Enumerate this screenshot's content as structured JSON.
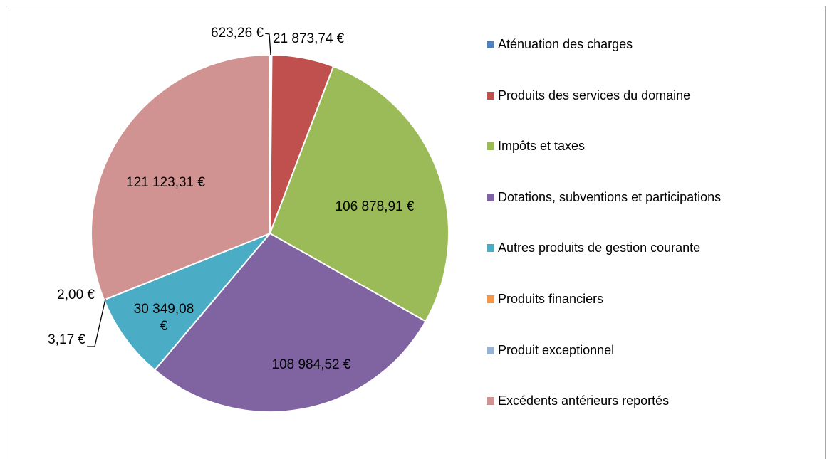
{
  "chart_data": {
    "type": "pie",
    "categories": [
      "Aténuation des charges",
      "Produits des services du domaine",
      "Impôts et taxes",
      "Dotations, subventions et participations",
      "Autres produits de gestion courante",
      "Produits financiers",
      "Produit exceptionnel",
      "Excédents antérieurs reportés"
    ],
    "values": [
      623.26,
      21873.74,
      106878.91,
      108984.52,
      30349.08,
      2.0,
      3.17,
      121123.31
    ],
    "value_labels": [
      "623,26 €",
      "21 873,74 €",
      "106 878,91 €",
      "108 984,52 €",
      "30 349,08 €",
      "2,00 €",
      "3,17 €",
      "121 123,31 €"
    ],
    "colors": [
      "#4f81bd",
      "#c0504d",
      "#9bbb59",
      "#8064a2",
      "#4bacc6",
      "#f79646",
      "#95b3d7",
      "#d19391"
    ],
    "legend": "right"
  }
}
